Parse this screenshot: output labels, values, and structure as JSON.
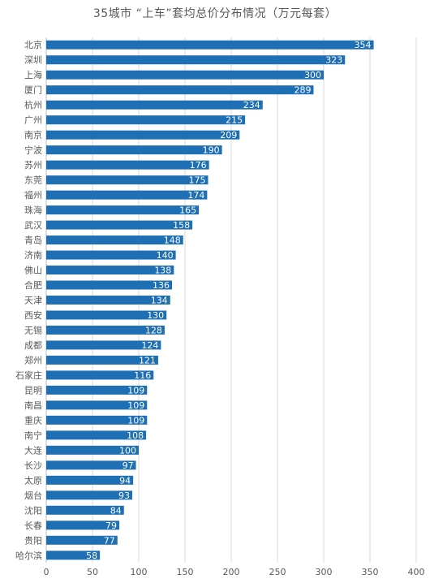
{
  "chart_data": {
    "type": "bar",
    "orientation": "horizontal",
    "title": "35城市 “上车”套均总价分布情况（万元每套）",
    "categories": [
      "北京",
      "深圳",
      "上海",
      "厦门",
      "杭州",
      "广州",
      "南京",
      "宁波",
      "苏州",
      "东莞",
      "福州",
      "珠海",
      "武汉",
      "青岛",
      "济南",
      "佛山",
      "合肥",
      "天津",
      "西安",
      "无锡",
      "成都",
      "郑州",
      "石家庄",
      "昆明",
      "南昌",
      "重庆",
      "南宁",
      "大连",
      "长沙",
      "太原",
      "烟台",
      "沈阳",
      "长春",
      "贵阳",
      "哈尔滨"
    ],
    "values": [
      354,
      323,
      300,
      289,
      234,
      215,
      209,
      190,
      176,
      175,
      174,
      165,
      158,
      148,
      140,
      138,
      136,
      134,
      130,
      128,
      124,
      121,
      116,
      109,
      109,
      109,
      108,
      100,
      97,
      94,
      93,
      84,
      79,
      77,
      58
    ],
    "xlim": [
      0,
      400
    ],
    "xticks": [
      0,
      50,
      100,
      150,
      200,
      250,
      300,
      350,
      400
    ],
    "grid": true,
    "data_labels": "inside-end",
    "colors": {
      "bar": "#1f6fb4",
      "label": "#ffffff",
      "grid": "#d9d9d9",
      "axis_text": "#595959"
    }
  }
}
